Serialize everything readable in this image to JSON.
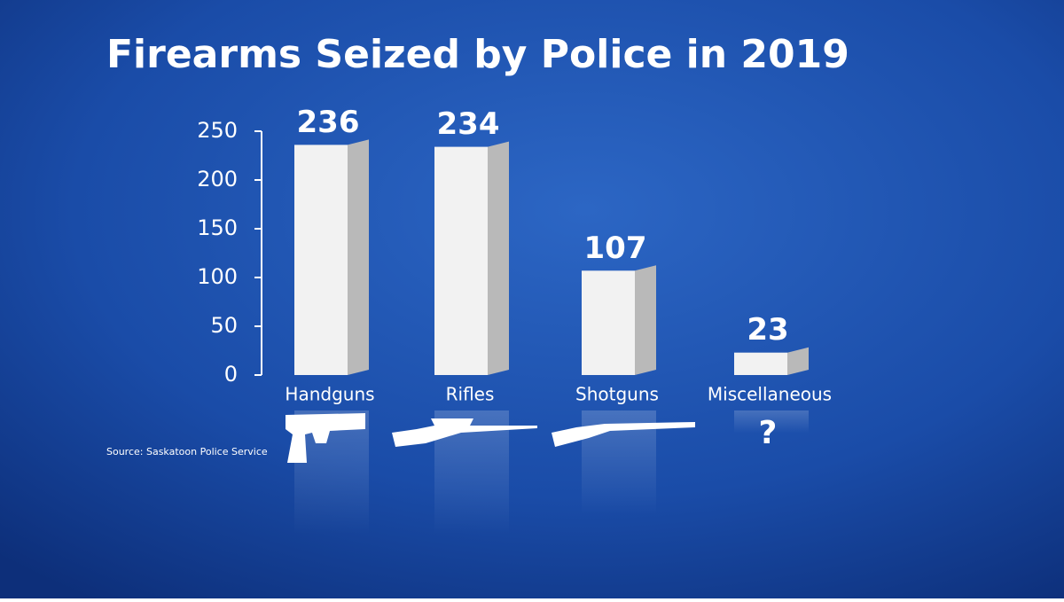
{
  "chart_data": {
    "type": "bar",
    "title": "Firearms Seized by Police in 2019",
    "categories": [
      "Handguns",
      "Rifles",
      "Shotguns",
      "Miscellaneous"
    ],
    "values": [
      236,
      234,
      107,
      23
    ],
    "color": "#f2f2f2",
    "ylim": [
      0,
      250
    ],
    "yticks": [
      0,
      50,
      100,
      150,
      200,
      250
    ],
    "grid": false,
    "annotations": [
      "?"
    ],
    "source": "Source: Saskatoon Police Service"
  }
}
